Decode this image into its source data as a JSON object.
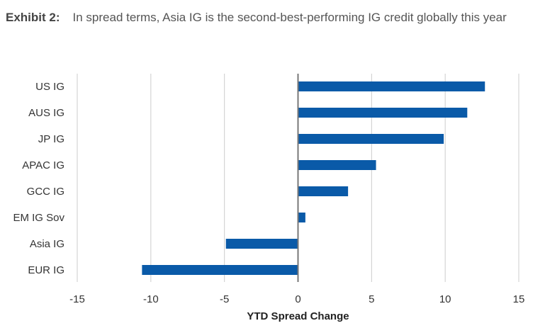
{
  "header": {
    "label": "Exhibit 2:",
    "title": "In spread terms, Asia IG is the second-best-performing IG credit globally this year"
  },
  "colors": {
    "bar": "#0a5aa8",
    "grid": "#cccccc",
    "zero_line": "#777777"
  },
  "chart_data": {
    "type": "bar",
    "orientation": "horizontal",
    "title": "",
    "xlabel": "YTD Spread Change",
    "ylabel": "",
    "categories": [
      "US IG",
      "AUS IG",
      "JP IG",
      "APAC IG",
      "GCC IG",
      "EM IG Sov",
      "Asia IG",
      "EUR IG"
    ],
    "values": [
      12.7,
      11.5,
      9.9,
      5.3,
      3.4,
      0.5,
      -4.9,
      -10.6
    ],
    "xlim": [
      -15,
      15
    ],
    "xticks": [
      -15,
      -10,
      -5,
      0,
      5,
      10,
      15
    ],
    "xtick_labels": [
      "-15",
      "-10",
      "-5",
      "0",
      "5",
      "10",
      "15"
    ],
    "grid": "vertical",
    "legend": "none"
  }
}
